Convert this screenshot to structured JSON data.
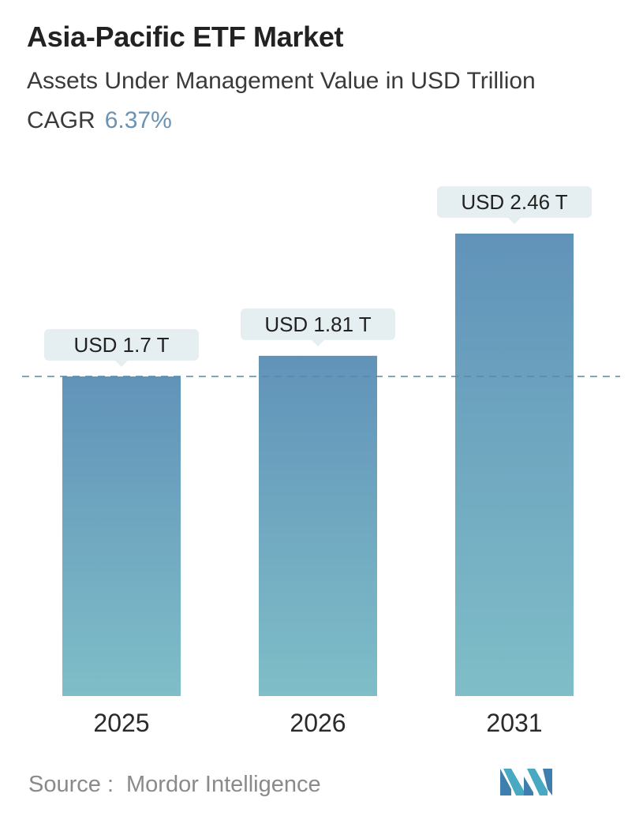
{
  "header": {
    "title": "Asia-Pacific ETF Market",
    "subtitle": "Assets Under Management Value in USD Trillion",
    "cagr_label": "CAGR",
    "cagr_value": "6.37%"
  },
  "chart_data": {
    "type": "bar",
    "categories": [
      "2025",
      "2026",
      "2031"
    ],
    "values": [
      1.7,
      1.81,
      2.46
    ],
    "data_labels": [
      "USD 1.7 T",
      "USD 1.81 T",
      "USD 2.46 T"
    ],
    "reference_line": 1.7,
    "ylim": [
      0,
      2.46
    ],
    "grid": false,
    "colors": {
      "bar_top": "#6193b9",
      "bar_bottom": "#7fbec8",
      "label_bg": "#e5eef0",
      "reference_line": "#5a87a5"
    }
  },
  "footer": {
    "source_label": "Source :",
    "source_name": "Mordor Intelligence",
    "logo_icon": "mordor-intelligence-logo"
  }
}
